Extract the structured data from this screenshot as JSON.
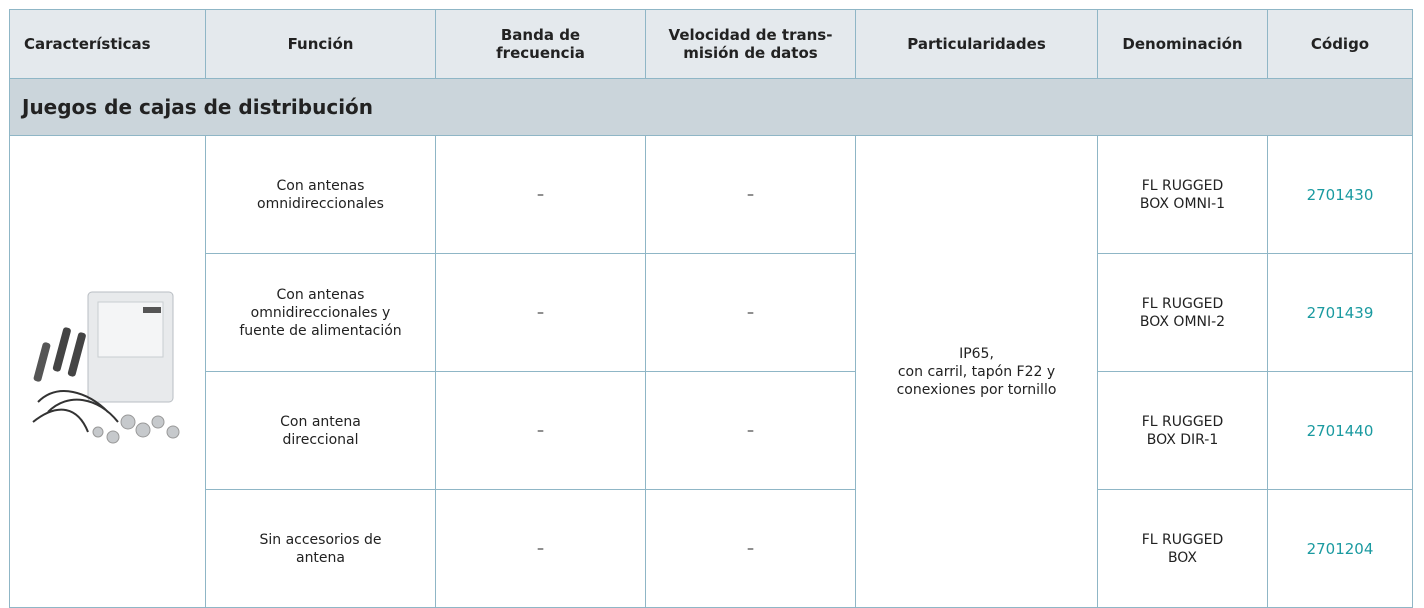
{
  "header": {
    "columns": [
      "Características",
      "Función",
      "Banda de\nfrecuencia",
      "Velocidad de trans-\nmisión de datos",
      "Particularidades",
      "Denominación",
      "Código"
    ]
  },
  "section": {
    "title": "Juegos de cajas de distribución"
  },
  "particularities": "IP65,\ncon carril, tapón F22 y\nconexiones por tornillo",
  "rows": [
    {
      "function": "Con antenas\nomnidireccionales",
      "band": "–",
      "speed": "–",
      "name": "FL RUGGED\nBOX OMNI-1",
      "code": "2701430"
    },
    {
      "function": "Con antenas\nomnidireccionales y\nfuente de alimentación",
      "band": "–",
      "speed": "–",
      "name": "FL RUGGED\nBOX OMNI-2",
      "code": "2701439"
    },
    {
      "function": "Con antena\ndireccional",
      "band": "–",
      "speed": "–",
      "name": "FL RUGGED\nBOX DIR-1",
      "code": "2701440"
    },
    {
      "function": "Sin accesorios de\nantena",
      "band": "–",
      "speed": "–",
      "name": "FL RUGGED\nBOX",
      "code": "2701204"
    }
  ]
}
